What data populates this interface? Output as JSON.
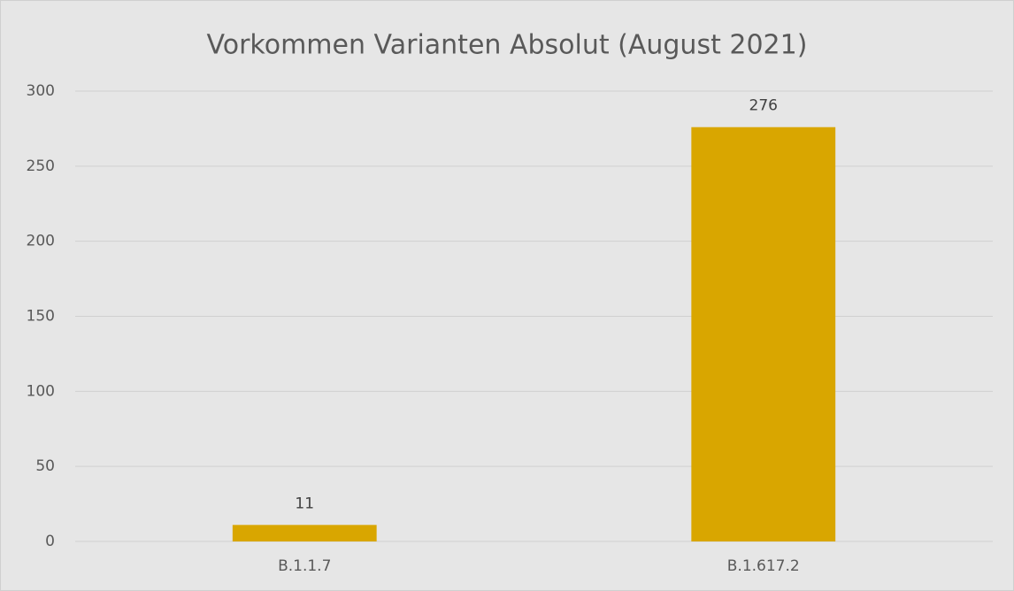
{
  "chart_data": {
    "type": "bar",
    "title": "Vorkommen Varianten Absolut (August 2021)",
    "categories": [
      "B.1.1.7",
      "B.1.617.2"
    ],
    "values": [
      11,
      276
    ],
    "color": "#d9a600",
    "ylim": [
      0,
      300
    ],
    "yticks": [
      0,
      50,
      100,
      150,
      200,
      250,
      300
    ],
    "grid": true
  }
}
